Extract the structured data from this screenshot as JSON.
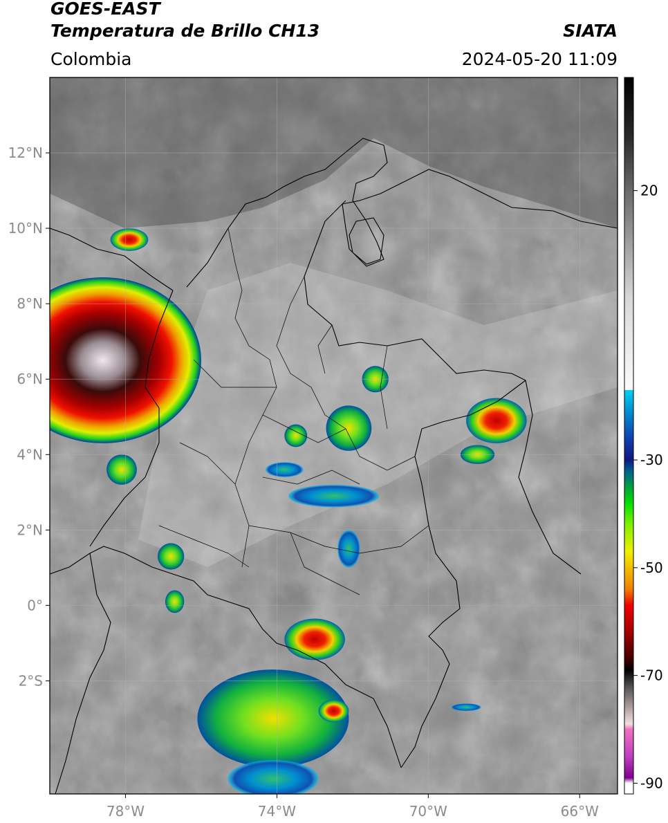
{
  "header": {
    "satellite": "GOES-EAST",
    "product": "Temperatura de Brillo CH13",
    "region": "Colombia",
    "source": "SIATA",
    "datetime": "2024-05-20 11:09"
  },
  "map": {
    "extent": {
      "lon_min": -80,
      "lon_max": -65,
      "lat_min": -5,
      "lat_max": 14
    },
    "lat_ticks": [
      {
        "value": 12,
        "label": "12°N"
      },
      {
        "value": 10,
        "label": "10°N"
      },
      {
        "value": 8,
        "label": "8°N"
      },
      {
        "value": 6,
        "label": "6°N"
      },
      {
        "value": 4,
        "label": "4°N"
      },
      {
        "value": 2,
        "label": "2°N"
      },
      {
        "value": 0,
        "label": "0°"
      },
      {
        "value": -2,
        "label": "2°S"
      }
    ],
    "lon_ticks": [
      {
        "value": -78,
        "label": "78°W"
      },
      {
        "value": -74,
        "label": "74°W"
      },
      {
        "value": -70,
        "label": "70°W"
      },
      {
        "value": -66,
        "label": "66°W"
      }
    ],
    "grid": true,
    "clouds": [
      {
        "lon": -78.6,
        "lat": 6.5,
        "rx": 2.6,
        "ry": 2.2,
        "level": "extreme"
      },
      {
        "lon": -77.9,
        "lat": 9.7,
        "rx": 0.5,
        "ry": 0.3,
        "level": "strong"
      },
      {
        "lon": -78.1,
        "lat": 3.6,
        "rx": 0.4,
        "ry": 0.4,
        "level": "moderate"
      },
      {
        "lon": -72.1,
        "lat": 4.7,
        "rx": 0.6,
        "ry": 0.6,
        "level": "moderate"
      },
      {
        "lon": -71.4,
        "lat": 6.0,
        "rx": 0.35,
        "ry": 0.35,
        "level": "moderate"
      },
      {
        "lon": -73.5,
        "lat": 4.5,
        "rx": 0.3,
        "ry": 0.3,
        "level": "moderate"
      },
      {
        "lon": -68.2,
        "lat": 4.9,
        "rx": 0.8,
        "ry": 0.6,
        "level": "strong"
      },
      {
        "lon": -68.7,
        "lat": 4.0,
        "rx": 0.45,
        "ry": 0.25,
        "level": "moderate"
      },
      {
        "lon": -73.8,
        "lat": 3.6,
        "rx": 0.5,
        "ry": 0.2,
        "level": "weak"
      },
      {
        "lon": -72.5,
        "lat": 2.9,
        "rx": 1.2,
        "ry": 0.3,
        "level": "weak"
      },
      {
        "lon": -72.1,
        "lat": 1.5,
        "rx": 0.3,
        "ry": 0.5,
        "level": "weak"
      },
      {
        "lon": -76.8,
        "lat": 1.3,
        "rx": 0.35,
        "ry": 0.35,
        "level": "moderate"
      },
      {
        "lon": -76.7,
        "lat": 0.1,
        "rx": 0.25,
        "ry": 0.3,
        "level": "moderate"
      },
      {
        "lon": -73.0,
        "lat": -0.9,
        "rx": 0.8,
        "ry": 0.55,
        "level": "strong"
      },
      {
        "lon": -74.1,
        "lat": -3.0,
        "rx": 2.0,
        "ry": 1.3,
        "level": "moderate"
      },
      {
        "lon": -74.1,
        "lat": -4.6,
        "rx": 1.2,
        "ry": 0.5,
        "level": "weak"
      },
      {
        "lon": -72.5,
        "lat": -2.8,
        "rx": 0.4,
        "ry": 0.3,
        "level": "strong"
      },
      {
        "lon": -69.0,
        "lat": -2.7,
        "rx": 0.4,
        "ry": 0.1,
        "level": "weak"
      }
    ]
  },
  "colorbar": {
    "ticks": [
      {
        "value": 20,
        "label": "20"
      },
      {
        "value": -30,
        "label": "-30"
      },
      {
        "value": -50,
        "label": "-50"
      },
      {
        "value": -70,
        "label": "-70"
      },
      {
        "value": -90,
        "label": "-90"
      }
    ],
    "stops": [
      {
        "value": 41,
        "color": "#000000"
      },
      {
        "value": 30,
        "color": "#2a2a2a"
      },
      {
        "value": 20,
        "color": "#6a6a6a"
      },
      {
        "value": 10,
        "color": "#a0a0a0"
      },
      {
        "value": 0,
        "color": "#d8d8d8"
      },
      {
        "value": -17,
        "color": "#fbfbfb"
      },
      {
        "value": -17.01,
        "color": "#00d0f0"
      },
      {
        "value": -21,
        "color": "#0090d0"
      },
      {
        "value": -26,
        "color": "#1040b0"
      },
      {
        "value": -30,
        "color": "#101880"
      },
      {
        "value": -32,
        "color": "#006090"
      },
      {
        "value": -35,
        "color": "#00a040"
      },
      {
        "value": -38,
        "color": "#00e000"
      },
      {
        "value": -42,
        "color": "#80f000"
      },
      {
        "value": -47,
        "color": "#f0f000"
      },
      {
        "value": -50,
        "color": "#f0c000"
      },
      {
        "value": -54,
        "color": "#f08000"
      },
      {
        "value": -57,
        "color": "#f00000"
      },
      {
        "value": -62,
        "color": "#a00000"
      },
      {
        "value": -67,
        "color": "#400000"
      },
      {
        "value": -69,
        "color": "#000000"
      },
      {
        "value": -72,
        "color": "#505050"
      },
      {
        "value": -76,
        "color": "#b0a0a0"
      },
      {
        "value": -79,
        "color": "#f0e0e0"
      },
      {
        "value": -80,
        "color": "#f070c0"
      },
      {
        "value": -85,
        "color": "#c040c0"
      },
      {
        "value": -89,
        "color": "#800090"
      },
      {
        "value": -90,
        "color": "#ffffff"
      },
      {
        "value": -92,
        "color": "#ffffff"
      }
    ]
  }
}
